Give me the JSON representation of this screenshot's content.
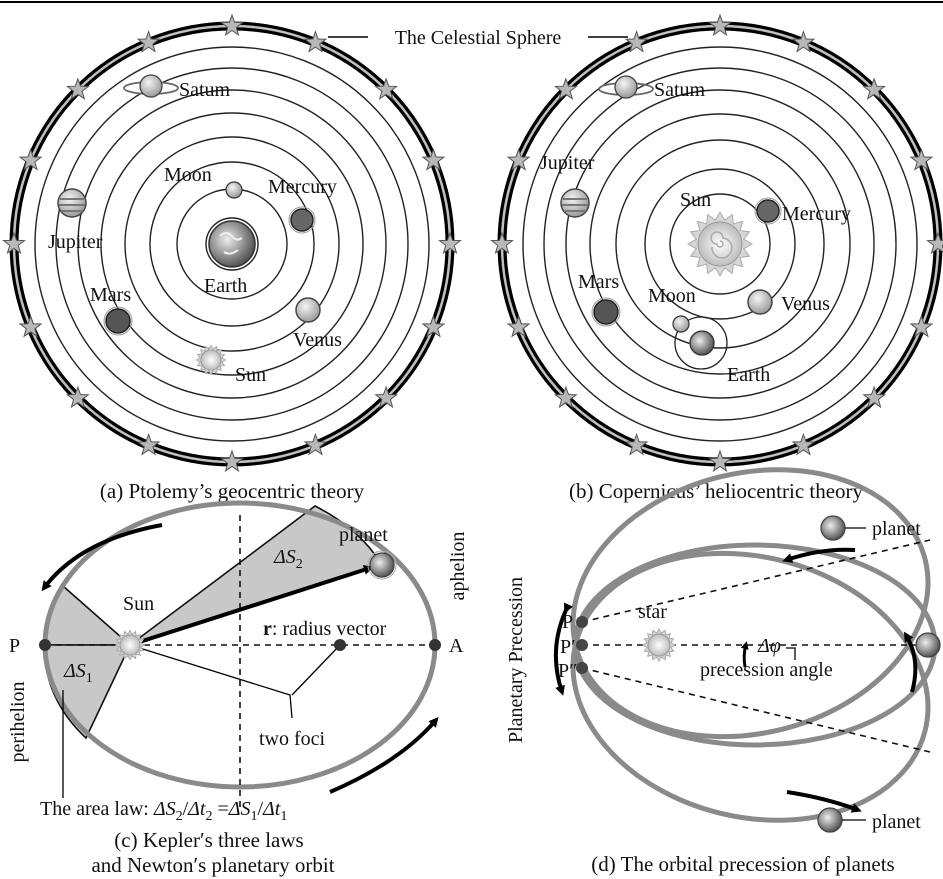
{
  "celestial_sphere_label": "The Celestial Sphere",
  "panel_a": {
    "caption": "(a) Ptolemy’s geocentric theory",
    "labels": {
      "satum": "Satum",
      "moon": "Moon",
      "mercury": "Mercury",
      "jupiter": "Jupiter",
      "earth": "Earth",
      "mars": "Mars",
      "venus": "Venus",
      "sun": "Sun"
    }
  },
  "panel_b": {
    "caption": "(b) Copernicus’ heliocentric theory",
    "labels": {
      "satum": "Satum",
      "jupiter": "Jupiter",
      "sun": "Sun",
      "mercury": "Mercury",
      "mars": "Mars",
      "moon": "Moon",
      "venus": "Venus",
      "earth": "Earth"
    }
  },
  "panel_c": {
    "caption_line1": "(c) Kepler′s three laws",
    "caption_line2": "and Newton′s planetary orbit",
    "planet": "planet",
    "aphelion": "aphelion",
    "perihelion": "perihelion",
    "sun": "Sun",
    "delta_s2": "ΔS",
    "delta_s2_sub": "2",
    "delta_s1": "ΔS",
    "delta_s1_sub": "1",
    "radius_bold": "r",
    "radius_rest": ": radius vector",
    "p": "P",
    "a": "A",
    "two_foci": "two foci",
    "area_law_prefix": "The area law: ",
    "area_law_ds2": "ΔS",
    "area_law_ds2_sub": "2",
    "area_law_slash1": "/",
    "area_law_dt2": "Δt",
    "area_law_dt2_sub": "2",
    "area_law_eq": " =",
    "area_law_ds1": "ΔS",
    "area_law_ds1_sub": "1",
    "area_law_slash2": "/",
    "area_law_dt1": "Δt",
    "area_law_dt1_sub": "1"
  },
  "panel_d": {
    "caption": "(d) The orbital precession of planets",
    "planet_top": "planet",
    "planet_bottom": "planet",
    "planetary_precession": "Planetary Precession",
    "star": "star",
    "p": "P",
    "p_prime": "P′",
    "p_double_prime": "P″",
    "delta_phi": "Δφ",
    "precession_angle": "precession angle"
  }
}
